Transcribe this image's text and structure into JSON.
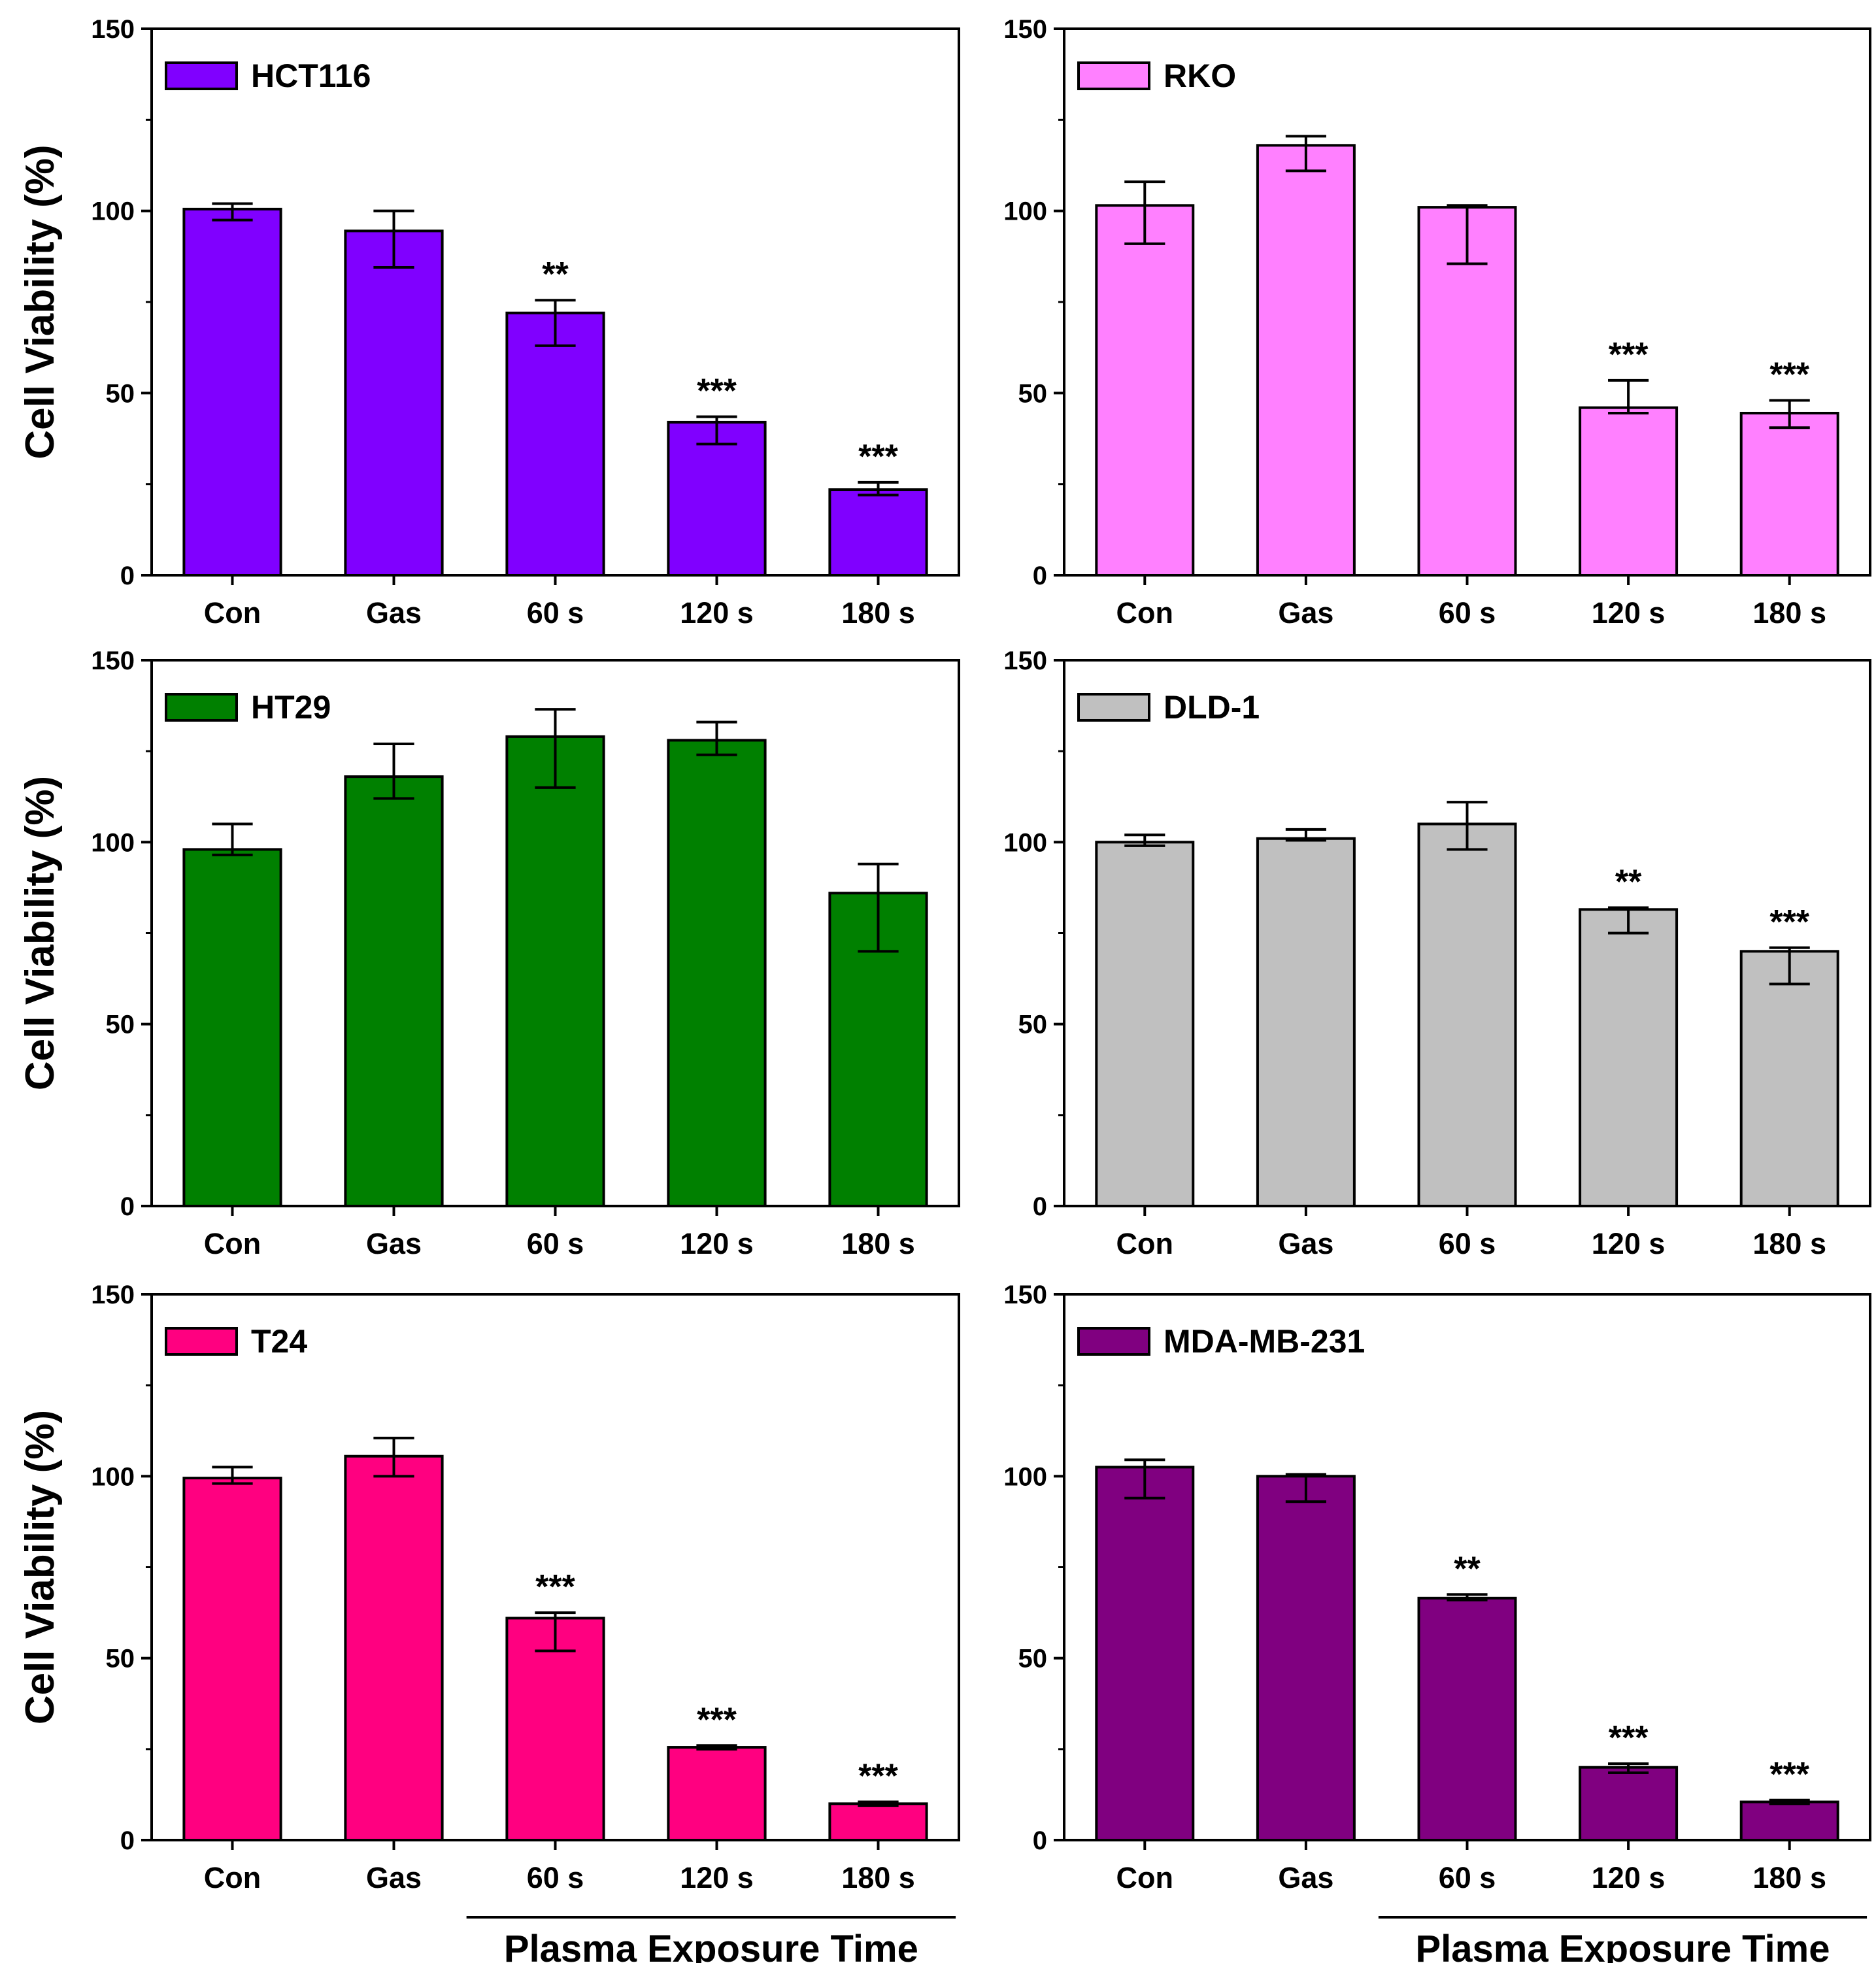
{
  "chart_data": [
    {
      "type": "bar",
      "legend": "HCT116",
      "color": "#8000FF",
      "categories": [
        "Con",
        "Gas",
        "60 s",
        "120 s",
        "180 s"
      ],
      "values": [
        100.5,
        94.5,
        72,
        42,
        23.5
      ],
      "err_low": [
        3,
        10,
        9,
        6,
        1.5
      ],
      "err_high": [
        1.5,
        5.5,
        3.5,
        1.5,
        2
      ],
      "significance": [
        "",
        "",
        "**",
        "***",
        "***"
      ],
      "ylabel": "Cell Viability (%)",
      "xlabel": "",
      "ylim": [
        0,
        150
      ],
      "yticks": [
        "0",
        "50",
        "100",
        "150"
      ]
    },
    {
      "type": "bar",
      "legend": "RKO",
      "color": "#FF80FF",
      "categories": [
        "Con",
        "Gas",
        "60 s",
        "120 s",
        "180 s"
      ],
      "values": [
        101.5,
        118,
        101,
        46,
        44.5
      ],
      "err_low": [
        10.5,
        7,
        15.5,
        1.5,
        4
      ],
      "err_high": [
        6.5,
        2.5,
        0.5,
        7.5,
        3.5
      ],
      "significance": [
        "",
        "",
        "",
        "***",
        "***"
      ],
      "ylabel": "",
      "xlabel": "",
      "ylim": [
        0,
        150
      ],
      "yticks": [
        "0",
        "50",
        "100",
        "150"
      ]
    },
    {
      "type": "bar",
      "legend": "HT29",
      "color": "#008000",
      "categories": [
        "Con",
        "Gas",
        "60 s",
        "120 s",
        "180 s"
      ],
      "values": [
        98,
        118,
        129,
        128,
        86
      ],
      "err_low": [
        1.5,
        6,
        14,
        4,
        16
      ],
      "err_high": [
        7,
        9,
        7.5,
        5,
        8
      ],
      "significance": [
        "",
        "",
        "",
        "",
        ""
      ],
      "ylabel": "Cell Viability (%)",
      "xlabel": "",
      "ylim": [
        0,
        150
      ],
      "yticks": [
        "0",
        "50",
        "100",
        "150"
      ]
    },
    {
      "type": "bar",
      "legend": "DLD-1",
      "color": "#C0C0C0",
      "categories": [
        "Con",
        "Gas",
        "60 s",
        "120 s",
        "180 s"
      ],
      "values": [
        100,
        101,
        105,
        81.5,
        70
      ],
      "err_low": [
        1,
        0.5,
        7,
        6.5,
        9
      ],
      "err_high": [
        2,
        2.5,
        6,
        0.5,
        1
      ],
      "significance": [
        "",
        "",
        "",
        "**",
        "***"
      ],
      "ylabel": "",
      "xlabel": "",
      "ylim": [
        0,
        150
      ],
      "yticks": [
        "0",
        "50",
        "100",
        "150"
      ]
    },
    {
      "type": "bar",
      "legend": "T24",
      "color": "#FF0080",
      "categories": [
        "Con",
        "Gas",
        "60 s",
        "120 s",
        "180 s"
      ],
      "values": [
        99.5,
        105.5,
        61,
        25.5,
        10
      ],
      "err_low": [
        1.5,
        5.5,
        9,
        0.5,
        0.5
      ],
      "err_high": [
        3,
        5,
        1.5,
        0.5,
        0.5
      ],
      "significance": [
        "",
        "",
        "***",
        "***",
        "***"
      ],
      "ylabel": "Cell Viability (%)",
      "xlabel": "Plasma Exposure Time",
      "ylim": [
        0,
        150
      ],
      "yticks": [
        "0",
        "50",
        "100",
        "150"
      ]
    },
    {
      "type": "bar",
      "legend": "MDA-MB-231",
      "color": "#800080",
      "categories": [
        "Con",
        "Gas",
        "60 s",
        "120 s",
        "180 s"
      ],
      "values": [
        102.5,
        100,
        66.5,
        20,
        10.5
      ],
      "err_low": [
        8.5,
        7,
        0.5,
        1.5,
        0.5
      ],
      "err_high": [
        2,
        0.5,
        1,
        1,
        0.5
      ],
      "significance": [
        "",
        "",
        "**",
        "***",
        "***"
      ],
      "ylabel": "",
      "xlabel": "Plasma Exposure Time",
      "ylim": [
        0,
        150
      ],
      "yticks": [
        "0",
        "50",
        "100",
        "150"
      ]
    }
  ]
}
